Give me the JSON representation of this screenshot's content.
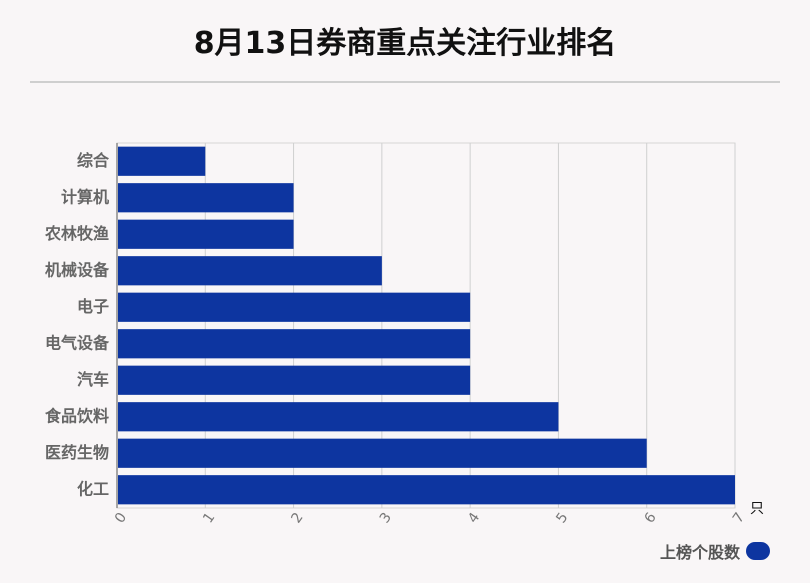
{
  "title": "8月13日券商重点关注行业排名",
  "unit_label": "只",
  "chart_data": {
    "type": "bar",
    "orientation": "horizontal",
    "categories": [
      "综合",
      "计算机",
      "农林牧渔",
      "机械设备",
      "电子",
      "电气设备",
      "汽车",
      "食品饮料",
      "医药生物",
      "化工"
    ],
    "series": [
      {
        "name": "上榜个股数",
        "values": [
          1,
          2,
          2,
          3,
          4,
          4,
          4,
          5,
          6,
          7
        ]
      }
    ],
    "xlim": [
      0,
      7
    ],
    "x_ticks": [
      "0",
      "1",
      "2",
      "3",
      "4",
      "5",
      "6",
      "7"
    ],
    "grid": true,
    "legend_position": "bottom-right",
    "bar_color": "#0d35a0"
  }
}
